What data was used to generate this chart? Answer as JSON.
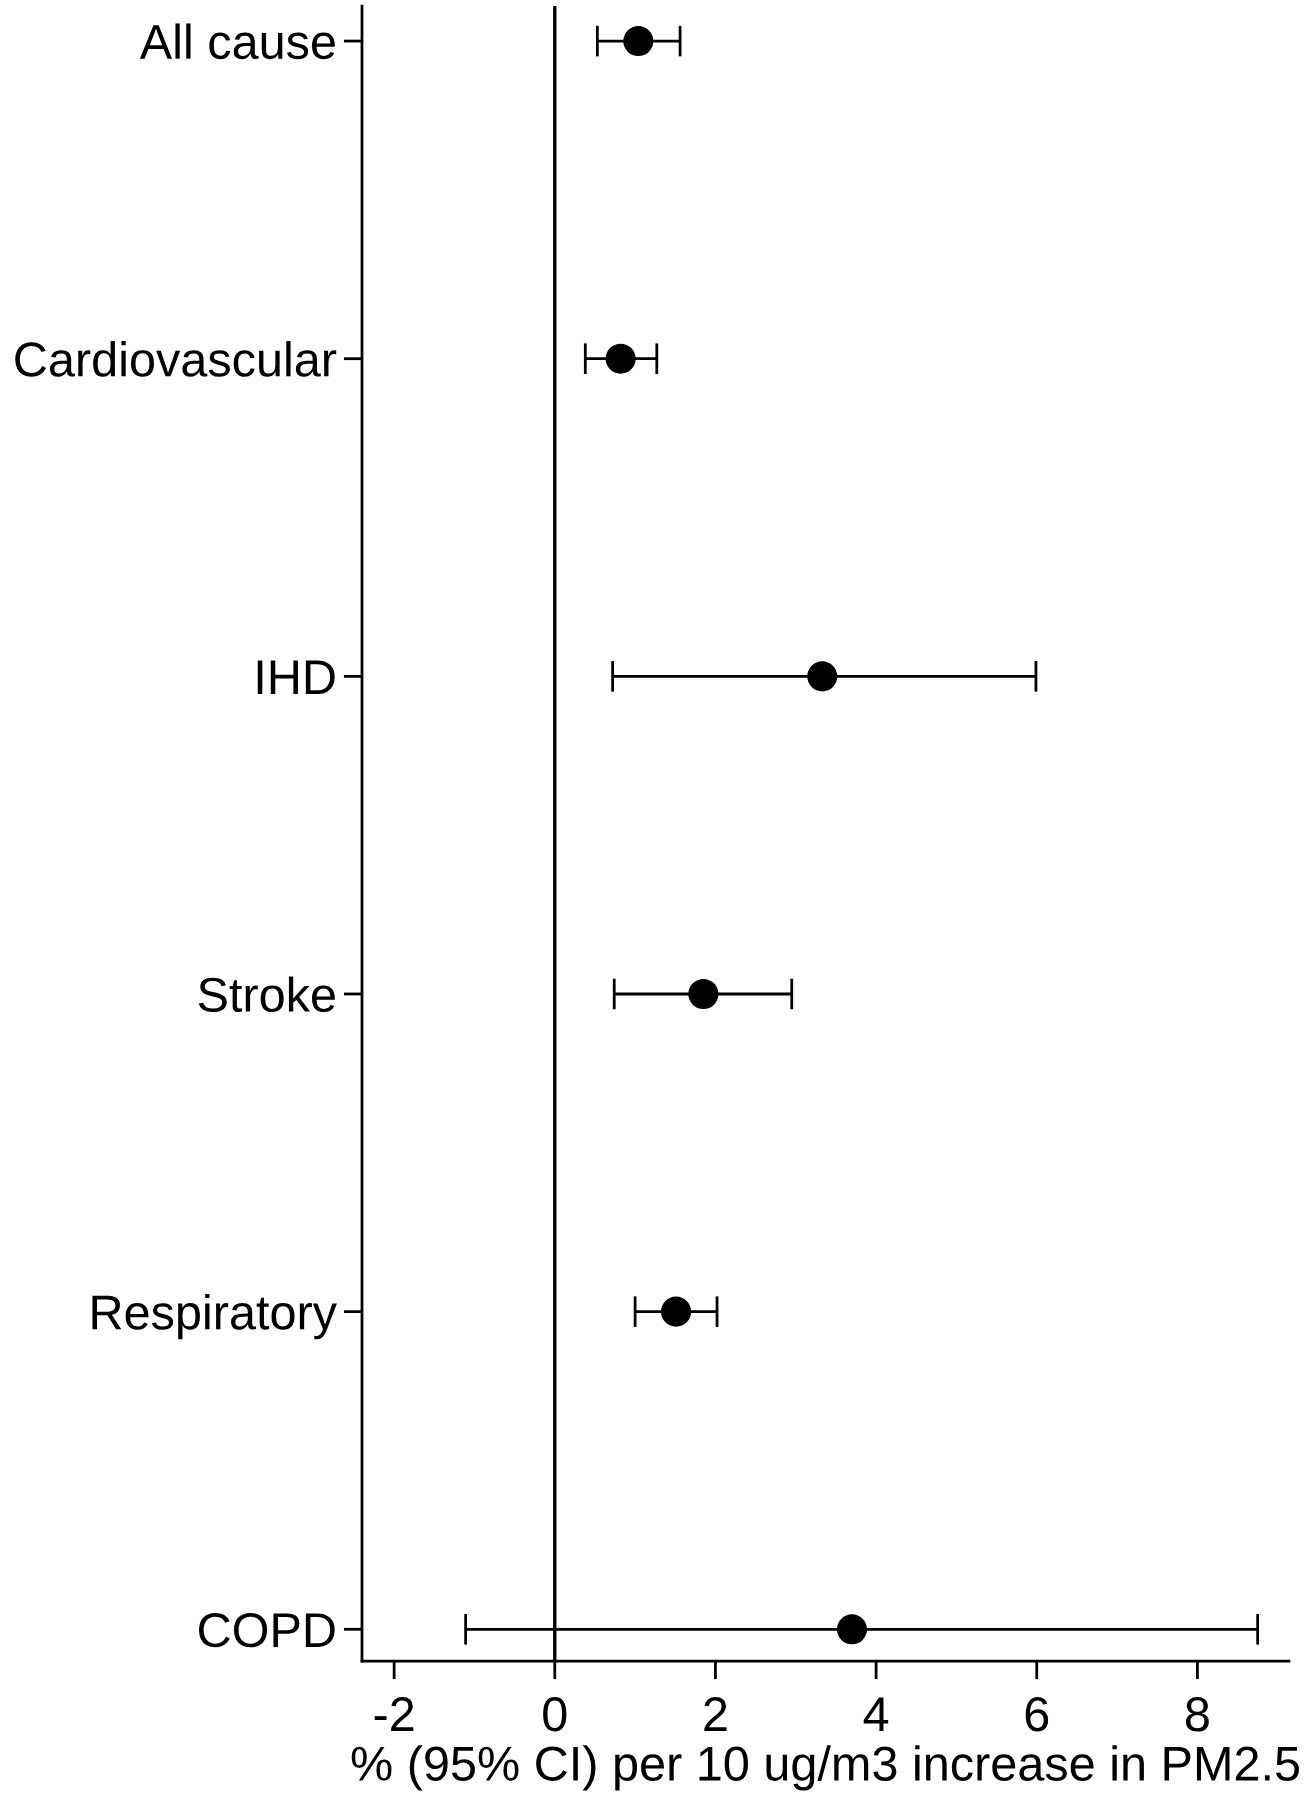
{
  "chart_data": {
    "type": "scatter",
    "orientation": "horizontal",
    "marker": "circle",
    "categories": [
      "All cause",
      "Cardiovascular",
      "IHD",
      "Stroke",
      "Respiratory",
      "COPD"
    ],
    "series": [
      {
        "color": "#000000",
        "values": [
          1.04,
          0.82,
          3.33,
          1.85,
          1.51,
          3.7
        ],
        "errors": [
          [
            0.53,
            1.56
          ],
          [
            0.38,
            1.27
          ],
          [
            0.72,
            5.99
          ],
          [
            0.74,
            2.95
          ],
          [
            1.0,
            2.02
          ],
          [
            -1.11,
            8.75
          ]
        ]
      }
    ],
    "xlim": [
      -2.4,
      9.14
    ],
    "xticks": [
      -2,
      0,
      2,
      4,
      6,
      8
    ],
    "xlabel": "% (95% CI) per 10 ug/m3 increase in PM2.5",
    "ref_lines": [
      {
        "axis": "x",
        "value": 0,
        "color": "#000000"
      }
    ]
  }
}
